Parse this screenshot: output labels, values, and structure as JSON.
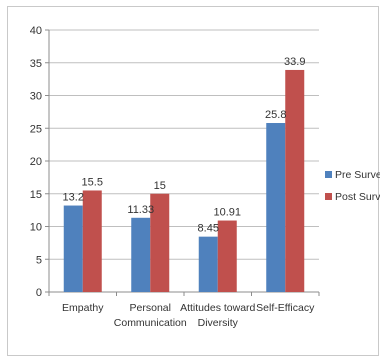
{
  "chart_data": {
    "type": "bar",
    "categories": [
      "Empathy",
      "Personal Communication",
      "Attitudes toward Diversity",
      "Self-Efficacy"
    ],
    "category_label_lines": [
      [
        "Empathy"
      ],
      [
        "Personal",
        "Communication"
      ],
      [
        "Attitudes toward",
        "Diversity"
      ],
      [
        "Self-Efficacy"
      ]
    ],
    "series": [
      {
        "name": "Pre Survey",
        "values": [
          13.2,
          11.33,
          8.45,
          25.8
        ],
        "labels": [
          "13.2",
          "11.33",
          "8.45",
          "25.8"
        ],
        "color": "#4f81bd"
      },
      {
        "name": "Post Survey",
        "values": [
          15.5,
          15,
          10.91,
          33.9
        ],
        "labels": [
          "15.5",
          "15",
          "10.91",
          "33.9"
        ],
        "color": "#c0504d"
      }
    ],
    "ylim": [
      0,
      40
    ],
    "yticks": [
      0,
      5,
      10,
      15,
      20,
      25,
      30,
      35,
      40
    ],
    "grid": "horizontal",
    "legend_position": "right",
    "title": "",
    "xlabel": "",
    "ylabel": ""
  }
}
